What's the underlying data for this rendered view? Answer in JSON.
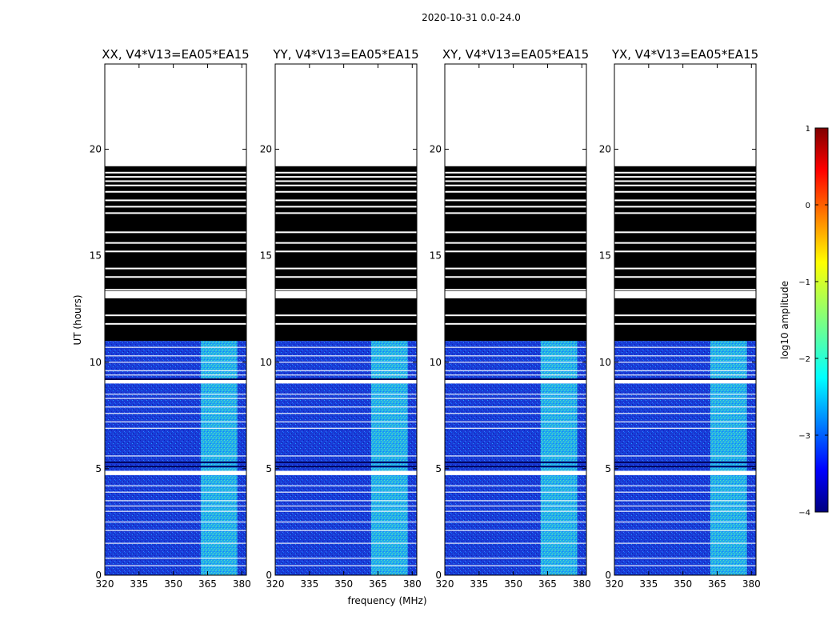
{
  "suptitle": "2020-10-31 0.0-24.0",
  "chart_data": {
    "type": "heatmap",
    "xlabel": "frequency (MHz)",
    "ylabel": "UT (hours)",
    "xlim": [
      320,
      382
    ],
    "ylim": [
      0,
      24
    ],
    "xticks": [
      320,
      335,
      350,
      365,
      380
    ],
    "yticks": [
      0,
      5,
      10,
      15,
      20
    ],
    "panels": [
      {
        "title": "XX, V4*V13=EA05*EA15"
      },
      {
        "title": "YY, V4*V13=EA05*EA15"
      },
      {
        "title": "XY, V4*V13=EA05*EA15"
      },
      {
        "title": "YX, V4*V13=EA05*EA15"
      }
    ],
    "data_range_hours": [
      0,
      19.2
    ],
    "data_columns": {
      "flagged_black_hours": [
        11.0,
        19.2
      ],
      "flagged_black_gaps_hours": [
        11.8,
        12.2,
        13.3,
        13.4,
        14.0,
        14.4,
        15.2,
        15.6,
        16.1,
        17.0,
        17.3,
        17.6,
        18.0,
        18.3,
        18.5,
        18.7,
        18.9
      ],
      "white_gap_bands_hours": [
        [
          13.0,
          13.3
        ],
        [
          9.0,
          9.2
        ],
        [
          4.7,
          4.9
        ]
      ],
      "bright_rfi_band_mhz": [
        362,
        378
      ]
    },
    "colorbar": {
      "label": "log10 amplitude",
      "min": -4,
      "max": 1,
      "ticks": [
        1,
        0,
        -1,
        -2,
        -3,
        -4
      ],
      "colormap": "jet"
    }
  }
}
